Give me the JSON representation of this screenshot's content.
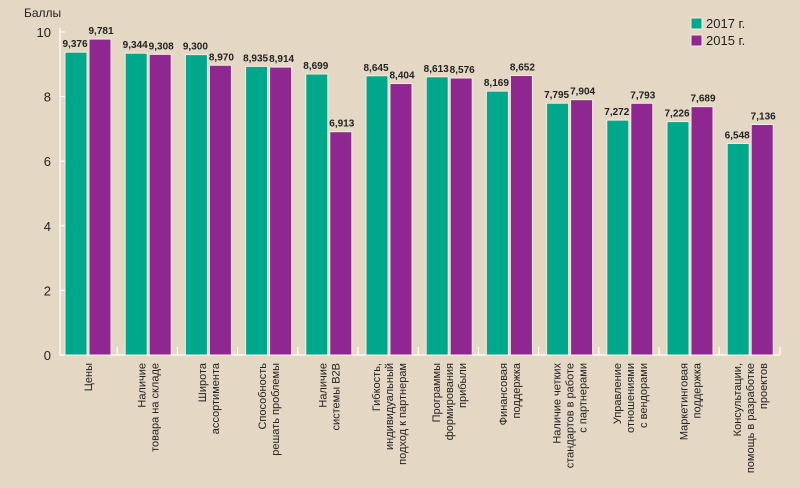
{
  "chart_data": {
    "type": "bar",
    "title": "",
    "xlabel": "",
    "ylabel": "Баллы",
    "ylim": [
      0,
      10
    ],
    "yticks": [
      0,
      2,
      4,
      6,
      8,
      10
    ],
    "grid": false,
    "legend_position": "top-right",
    "categories": [
      [
        "Цены"
      ],
      [
        "Наличие",
        "товара на складе"
      ],
      [
        "Широта",
        "ассортимента"
      ],
      [
        "Способность",
        "решать проблемы"
      ],
      [
        "Наличие",
        "системы B2B"
      ],
      [
        "Гибкость,",
        "индивидуальный",
        "подход к партнерам"
      ],
      [
        "Программы",
        "формирования",
        "прибыли"
      ],
      [
        "Финансовая",
        "поддержка"
      ],
      [
        "Наличие четких",
        "стандартов в работе",
        "с партнерами"
      ],
      [
        "Управление",
        "отношениями",
        "с вендорами"
      ],
      [
        "Маркетинговая",
        "поддержка"
      ],
      [
        "Консультации,",
        "помощь в разработке",
        "проектов"
      ]
    ],
    "series": [
      {
        "name": "2017 г.",
        "color": "#00a88b",
        "values": [
          9.376,
          9.344,
          9.3,
          8.935,
          8.699,
          8.645,
          8.613,
          8.169,
          7.795,
          7.272,
          7.226,
          6.548
        ],
        "labels": [
          "9,376",
          "9,344",
          "9,300",
          "8,935",
          "8,699",
          "8,645",
          "8,613",
          "8,169",
          "7,795",
          "7,272",
          "7,226",
          "6,548"
        ]
      },
      {
        "name": "2015 г.",
        "color": "#8e278f",
        "values": [
          9.781,
          9.308,
          8.97,
          8.914,
          6.913,
          8.404,
          8.576,
          8.652,
          7.904,
          7.793,
          7.689,
          7.136
        ],
        "labels": [
          "9,781",
          "9,308",
          "8,970",
          "8,914",
          "6,913",
          "8,404",
          "8,576",
          "8,652",
          "7,904",
          "7,793",
          "7,689",
          "7,136"
        ]
      }
    ]
  }
}
